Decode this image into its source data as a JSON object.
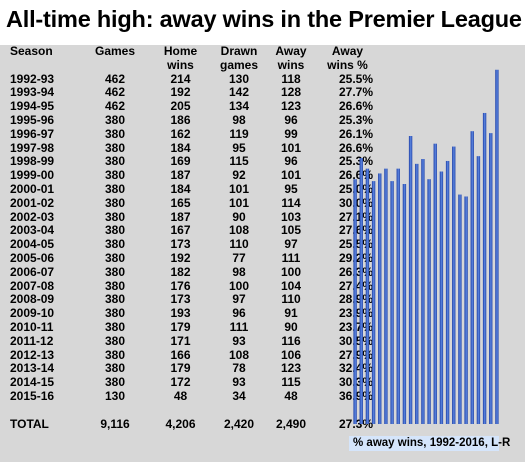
{
  "title": "All-time high: away wins in the Premier League",
  "columns": {
    "season": "Season",
    "games": "Games",
    "home_wins_1": "Home",
    "home_wins_2": "wins",
    "drawn_1": "Drawn",
    "drawn_2": "games",
    "away_wins_1": "Away",
    "away_wins_2": "wins",
    "away_pct_1": "Away",
    "away_pct_2": "wins %"
  },
  "rows": [
    {
      "season": "1992-93",
      "games": "462",
      "home": "214",
      "drawn": "130",
      "away": "118",
      "pct": "25.5%"
    },
    {
      "season": "1993-94",
      "games": "462",
      "home": "192",
      "drawn": "142",
      "away": "128",
      "pct": "27.7%"
    },
    {
      "season": "1994-95",
      "games": "462",
      "home": "205",
      "drawn": "134",
      "away": "123",
      "pct": "26.6%"
    },
    {
      "season": "1995-96",
      "games": "380",
      "home": "186",
      "drawn": "98",
      "away": "96",
      "pct": "25.3%"
    },
    {
      "season": "1996-97",
      "games": "380",
      "home": "162",
      "drawn": "119",
      "away": "99",
      "pct": "26.1%"
    },
    {
      "season": "1997-98",
      "games": "380",
      "home": "184",
      "drawn": "95",
      "away": "101",
      "pct": "26.6%"
    },
    {
      "season": "1998-99",
      "games": "380",
      "home": "169",
      "drawn": "115",
      "away": "96",
      "pct": "25.3%"
    },
    {
      "season": "1999-00",
      "games": "380",
      "home": "187",
      "drawn": "92",
      "away": "101",
      "pct": "26.6%"
    },
    {
      "season": "2000-01",
      "games": "380",
      "home": "184",
      "drawn": "101",
      "away": "95",
      "pct": "25.0%"
    },
    {
      "season": "2001-02",
      "games": "380",
      "home": "165",
      "drawn": "101",
      "away": "114",
      "pct": "30.0%"
    },
    {
      "season": "2002-03",
      "games": "380",
      "home": "187",
      "drawn": "90",
      "away": "103",
      "pct": "27.1%"
    },
    {
      "season": "2003-04",
      "games": "380",
      "home": "167",
      "drawn": "108",
      "away": "105",
      "pct": "27.6%"
    },
    {
      "season": "2004-05",
      "games": "380",
      "home": "173",
      "drawn": "110",
      "away": "97",
      "pct": "25.5%"
    },
    {
      "season": "2005-06",
      "games": "380",
      "home": "192",
      "drawn": "77",
      "away": "111",
      "pct": "29.2%"
    },
    {
      "season": "2006-07",
      "games": "380",
      "home": "182",
      "drawn": "98",
      "away": "100",
      "pct": "26.3%"
    },
    {
      "season": "2007-08",
      "games": "380",
      "home": "176",
      "drawn": "100",
      "away": "104",
      "pct": "27.4%"
    },
    {
      "season": "2008-09",
      "games": "380",
      "home": "173",
      "drawn": "97",
      "away": "110",
      "pct": "28.9%"
    },
    {
      "season": "2009-10",
      "games": "380",
      "home": "193",
      "drawn": "96",
      "away": "91",
      "pct": "23.9%"
    },
    {
      "season": "2010-11",
      "games": "380",
      "home": "179",
      "drawn": "111",
      "away": "90",
      "pct": "23.7%"
    },
    {
      "season": "2011-12",
      "games": "380",
      "home": "171",
      "drawn": "93",
      "away": "116",
      "pct": "30.5%"
    },
    {
      "season": "2012-13",
      "games": "380",
      "home": "166",
      "drawn": "108",
      "away": "106",
      "pct": "27.9%"
    },
    {
      "season": "2013-14",
      "games": "380",
      "home": "179",
      "drawn": "78",
      "away": "123",
      "pct": "32.4%"
    },
    {
      "season": "2014-15",
      "games": "380",
      "home": "172",
      "drawn": "93",
      "away": "115",
      "pct": "30.3%"
    },
    {
      "season": "2015-16",
      "games": "130",
      "home": "48",
      "drawn": "34",
      "away": "48",
      "pct": "36.9%"
    }
  ],
  "total": {
    "label": "TOTAL",
    "games": "9,116",
    "home": "4,206",
    "drawn": "2,420",
    "away": "2,490",
    "pct": "27.3%"
  },
  "chart_caption": "% away wins, 1992-2016, L-R",
  "colors": {
    "bar_dark": "#1f3fa6",
    "bar_light": "#5b86e0",
    "caption_bg": "#d5e5fb",
    "gridline": "#d7d7d7"
  },
  "chart_data": {
    "type": "bar",
    "title": "% away wins, 1992-2016, L-R",
    "categories": [
      "1992-93",
      "1993-94",
      "1994-95",
      "1995-96",
      "1996-97",
      "1997-98",
      "1998-99",
      "1999-00",
      "2000-01",
      "2001-02",
      "2002-03",
      "2003-04",
      "2004-05",
      "2005-06",
      "2006-07",
      "2007-08",
      "2008-09",
      "2009-10",
      "2010-11",
      "2011-12",
      "2012-13",
      "2013-14",
      "2014-15",
      "2015-16"
    ],
    "values": [
      25.5,
      27.7,
      26.6,
      25.3,
      26.1,
      26.6,
      25.3,
      26.6,
      25.0,
      30.0,
      27.1,
      27.6,
      25.5,
      29.2,
      26.3,
      27.4,
      28.9,
      23.9,
      23.7,
      30.5,
      27.9,
      32.4,
      30.3,
      36.9
    ],
    "xlabel": "",
    "ylabel": "",
    "ylim": [
      0,
      37.5
    ],
    "grid": false,
    "legend": "none"
  }
}
